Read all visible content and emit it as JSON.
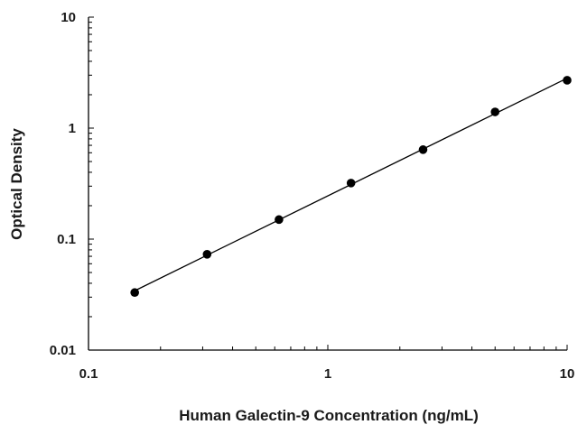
{
  "chart_data": {
    "type": "scatter",
    "title": "",
    "xlabel": "Human Galectin-9 Concentration (ng/mL)",
    "ylabel": "Optical Density",
    "x_scale": "log",
    "y_scale": "log",
    "xlim": [
      0.1,
      10
    ],
    "ylim": [
      0.01,
      10
    ],
    "x_ticks": [
      0.1,
      1,
      10
    ],
    "x_tick_labels": [
      "0.1",
      "1",
      "10"
    ],
    "y_ticks": [
      0.01,
      0.1,
      1,
      10
    ],
    "y_tick_labels": [
      "0.01",
      "0.1",
      "1",
      "10"
    ],
    "grid": false,
    "legend": "none",
    "series": [
      {
        "x": [
          0.156,
          0.313,
          0.625,
          1.25,
          2.5,
          5,
          10
        ],
        "y": [
          0.033,
          0.073,
          0.15,
          0.32,
          0.64,
          1.4,
          2.7
        ],
        "marker": "circle",
        "fit_line": true,
        "color": "#000000"
      }
    ]
  }
}
